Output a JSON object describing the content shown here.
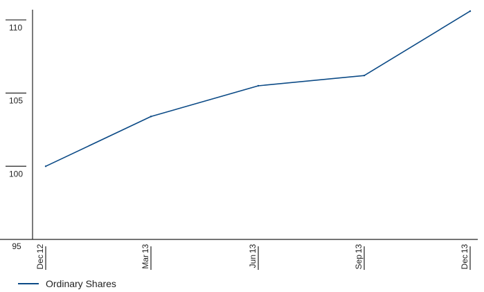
{
  "chart_data": {
    "type": "line",
    "x": [
      "2012-12",
      "2013-03",
      "2013-06",
      "2013-09",
      "2013-12"
    ],
    "x_tick_labels": [
      {
        "year": "12",
        "month": "Dec"
      },
      {
        "year": "13",
        "month": "Mar"
      },
      {
        "year": "13",
        "month": "Jun"
      },
      {
        "year": "13",
        "month": "Sep"
      },
      {
        "year": "13",
        "month": "Dec"
      }
    ],
    "series": [
      {
        "name": "Ordinary Shares",
        "color": "#0b4a86",
        "values": [
          100.0,
          103.4,
          105.5,
          106.2,
          110.6
        ]
      }
    ],
    "y_ticks": [
      95,
      100,
      105,
      110
    ],
    "y_tick_labels": [
      "95",
      "100",
      "105",
      "110"
    ],
    "ylim": [
      95,
      110.7
    ],
    "grid": false,
    "legend_position": "bottom-left"
  }
}
